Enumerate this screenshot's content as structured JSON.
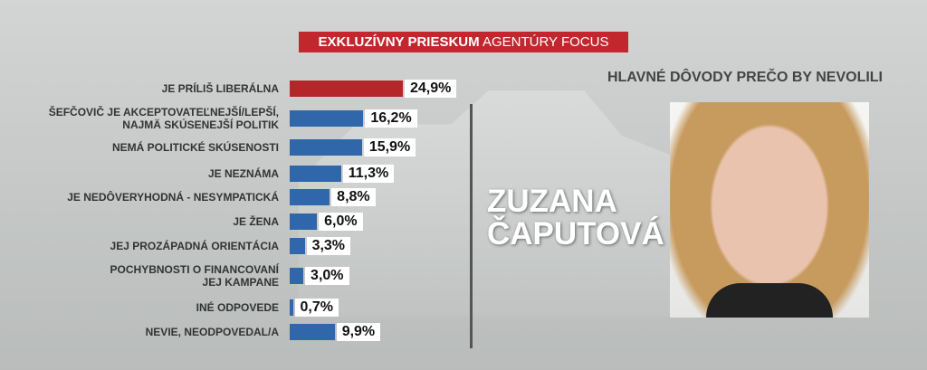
{
  "chart_data": {
    "type": "bar",
    "orientation": "horizontal",
    "banner": {
      "bold": "EXKLUZÍVNY PRIESKUM",
      "regular": "AGENTÚRY FOCUS"
    },
    "subtitle": "HLAVNÉ DÔVODY PREČO BY NEVOLILI",
    "annotations": [
      "ZUZANA",
      "ČAPUTOVÁ"
    ],
    "categories": [
      "JE PRÍLIŠ LIBERÁLNA",
      "ŠEFČOVIČ JE AKCEPTOVATEĽNEJŠÍ/LEPŠÍ,\nNAJMÄ SKÚSENEJŠÍ POLITIK",
      "NEMÁ POLITICKÉ SKÚSENOSTI",
      "JE NEZNÁMA",
      "JE NEDÔVERYHODNÁ - NESYMPATICKÁ",
      "JE ŽENA",
      "JEJ PROZÁPADNÁ ORIENTÁCIA",
      "POCHYBNOSTI O FINANCOVANÍ\nJEJ KAMPANE",
      "INÉ ODPOVEDE",
      "NEVIE, NEODPOVEDAL/A"
    ],
    "values": [
      24.9,
      16.2,
      15.9,
      11.3,
      8.8,
      6.0,
      3.3,
      3.0,
      0.7,
      9.9
    ],
    "value_labels": [
      "24,9%",
      "16,2%",
      "15,9%",
      "11,3%",
      "8,8%",
      "6,0%",
      "3,3%",
      "3,0%",
      "0,7%",
      "9,9%"
    ],
    "colors": [
      "#b5262b",
      "#2f67aa",
      "#2f67aa",
      "#2f67aa",
      "#2f67aa",
      "#2f67aa",
      "#2f67aa",
      "#2f67aa",
      "#2f67aa",
      "#2f67aa"
    ]
  }
}
